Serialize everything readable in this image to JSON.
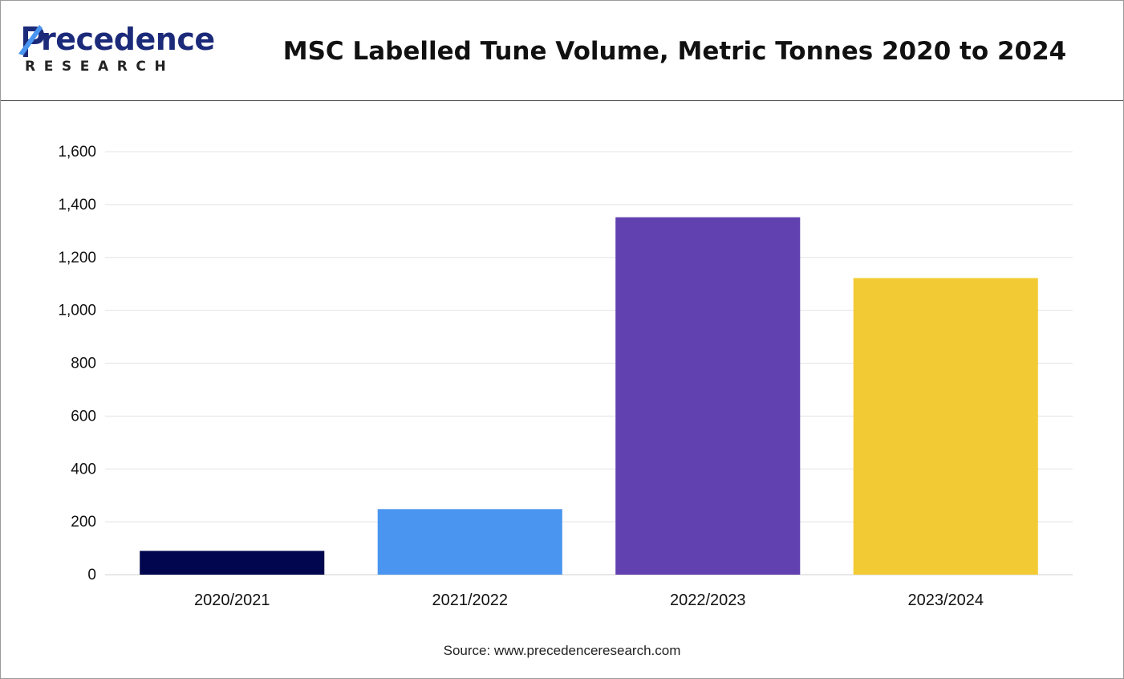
{
  "header": {
    "logo_word": "recedence",
    "logo_sub": "RESEARCH",
    "title": "MSC Labelled Tune Volume, Metric Tonnes 2020 to 2024"
  },
  "footer": {
    "source": "Source: www.precedenceresearch.com"
  },
  "chart_data": {
    "type": "bar",
    "title": "MSC Labelled Tune Volume, Metric Tonnes 2020 to 2024",
    "xlabel": "",
    "ylabel": "",
    "categories": [
      "2020/2021",
      "2021/2022",
      "2022/2023",
      "2023/2024"
    ],
    "values": [
      90,
      248,
      1352,
      1122
    ],
    "colors": [
      "#02064f",
      "#4a95f0",
      "#6140b0",
      "#f2cb34"
    ],
    "ylim": [
      0,
      1600
    ],
    "yticks": [
      0,
      200,
      400,
      600,
      800,
      1000,
      1200,
      1400,
      1600
    ],
    "ytick_labels": [
      "0",
      "200",
      "400",
      "600",
      "800",
      "1,000",
      "1,200",
      "1,400",
      "1,600"
    ],
    "grid": true,
    "legend": "none"
  }
}
